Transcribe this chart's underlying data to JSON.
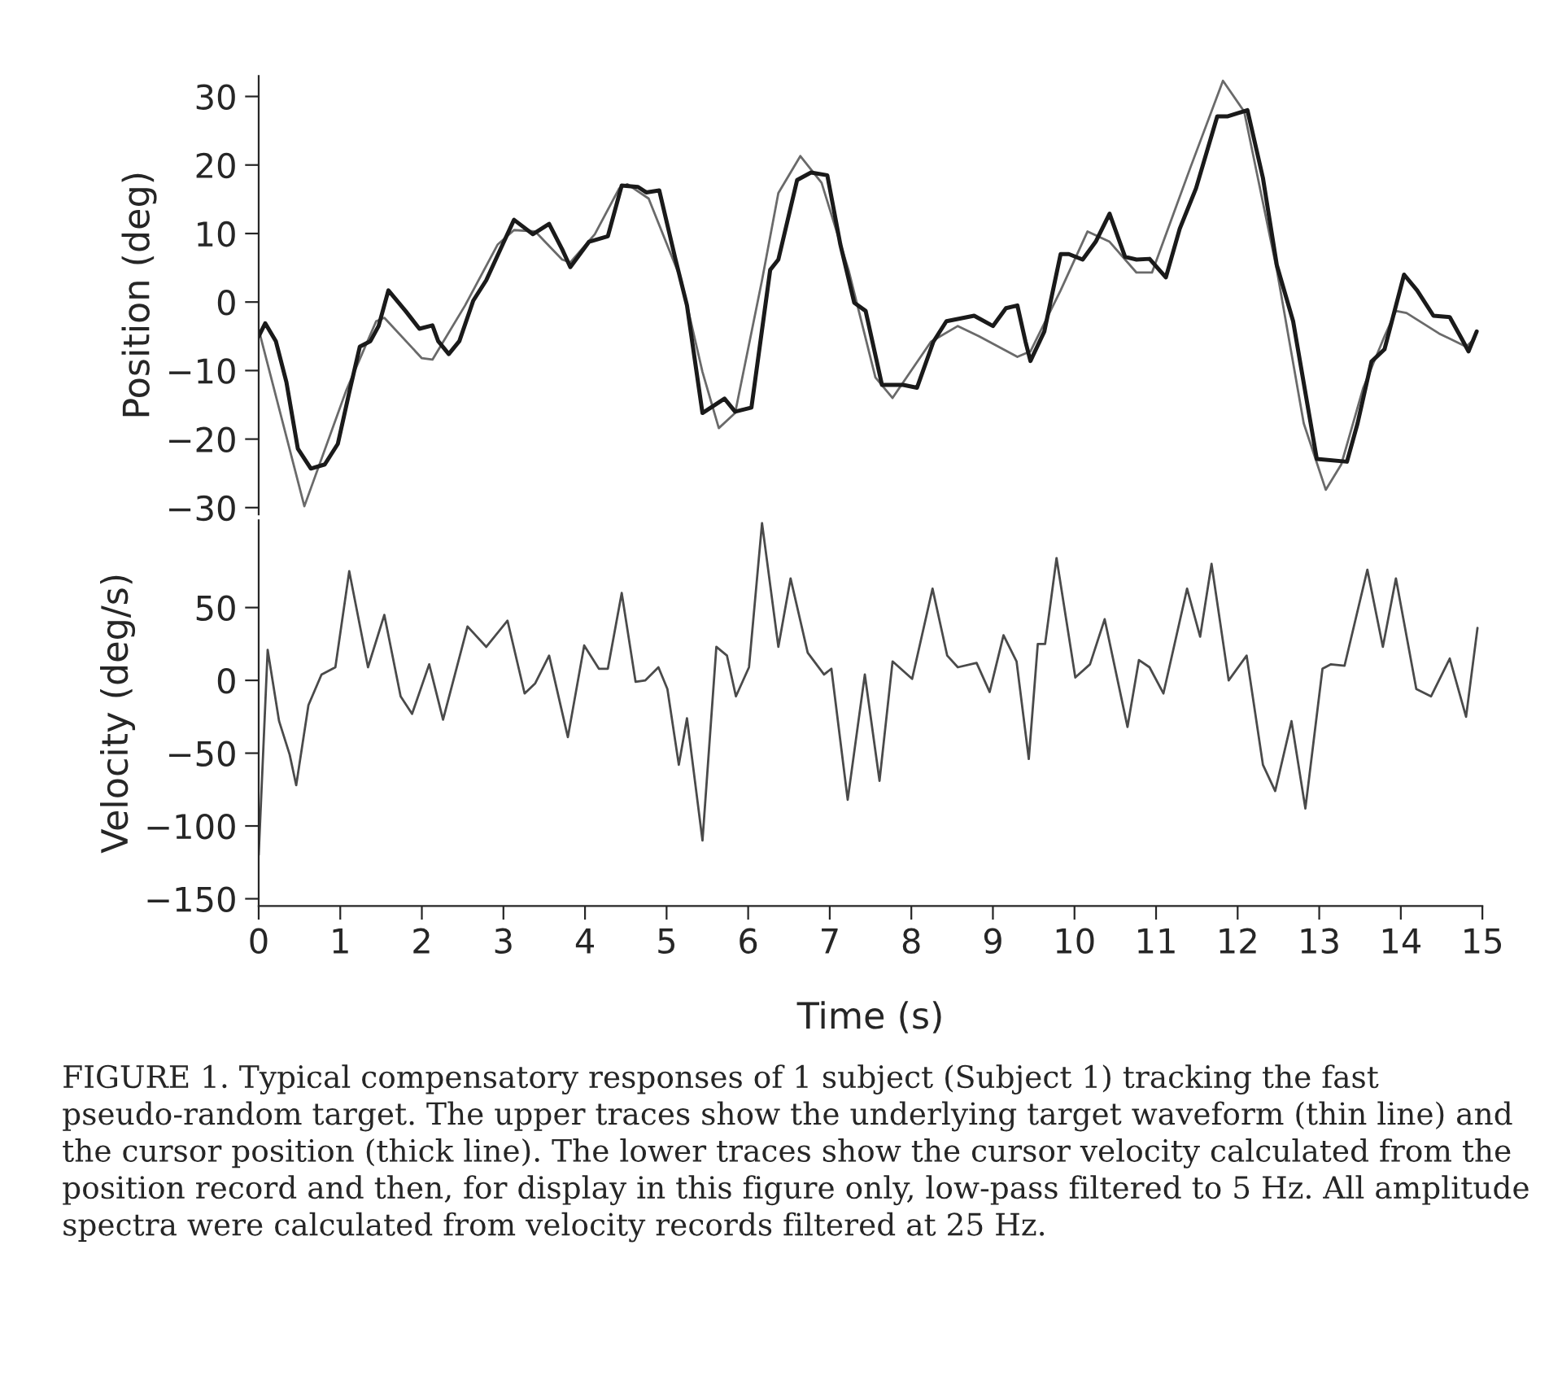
{
  "chart_data": [
    {
      "type": "line",
      "ylabel": "Position (deg)",
      "xlim": [
        0,
        15
      ],
      "ylim": [
        -31,
        33
      ],
      "yticks": [
        {
          "value": -30,
          "label": "−30"
        },
        {
          "value": -20,
          "label": "−20"
        },
        {
          "value": -10,
          "label": "−10"
        },
        0,
        10,
        20,
        30
      ],
      "tick_labels": "y",
      "grid": false,
      "legend": false,
      "series": [
        {
          "color": "#6a6a6a",
          "x": [
            0,
            0.56,
            1.07,
            1.44,
            1.54,
            2.0,
            2.13,
            2.53,
            2.93,
            3.13,
            3.39,
            3.72,
            3.82,
            4.12,
            4.42,
            4.52,
            4.78,
            5.18,
            5.44,
            5.64,
            5.84,
            6.17,
            6.37,
            6.64,
            6.9,
            7.23,
            7.56,
            7.77,
            8.24,
            8.57,
            8.83,
            9.3,
            9.46,
            9.83,
            10.16,
            10.43,
            10.76,
            10.95,
            11.42,
            11.82,
            12.08,
            12.48,
            12.81,
            13.08,
            13.27,
            13.54,
            13.8,
            13.94,
            14.07,
            14.47,
            14.8,
            14.9
          ],
          "values": [
            -4,
            -29.8,
            -13,
            -2.8,
            -2.3,
            -8.2,
            -8.4,
            -0.5,
            8.4,
            10.5,
            10.3,
            6.2,
            5.8,
            9.9,
            16.6,
            17.2,
            15.1,
            3.2,
            -10.2,
            -18.4,
            -16.2,
            3.2,
            15.9,
            21.3,
            17.4,
            4.7,
            -11,
            -14,
            -5.8,
            -3.5,
            -5,
            -8,
            -7.2,
            1.7,
            10.3,
            8.8,
            4.3,
            4.3,
            19.6,
            32.3,
            27.8,
            4.7,
            -17.7,
            -27.4,
            -23.7,
            -12.5,
            -5,
            -1.3,
            -1.6,
            -4.6,
            -6.5,
            -5.4
          ]
        },
        {
          "color": "#1a1a1a",
          "x": [
            0,
            0.08,
            0.21,
            0.34,
            0.48,
            0.64,
            0.81,
            0.97,
            1.11,
            1.24,
            1.37,
            1.47,
            1.59,
            1.8,
            1.97,
            2.13,
            2.2,
            2.33,
            2.46,
            2.63,
            2.79,
            2.99,
            3.13,
            3.36,
            3.56,
            3.72,
            3.82,
            4.05,
            4.28,
            4.45,
            4.65,
            4.75,
            4.91,
            5.11,
            5.25,
            5.44,
            5.71,
            5.84,
            6.04,
            6.27,
            6.37,
            6.6,
            6.77,
            6.97,
            7.13,
            7.3,
            7.44,
            7.64,
            7.9,
            8.07,
            8.27,
            8.43,
            8.77,
            9.0,
            9.16,
            9.3,
            9.4,
            9.46,
            9.63,
            9.83,
            9.93,
            10.1,
            10.26,
            10.43,
            10.62,
            10.76,
            10.92,
            11.12,
            11.29,
            11.49,
            11.75,
            11.88,
            12.12,
            12.31,
            12.48,
            12.68,
            12.97,
            13.34,
            13.47,
            13.64,
            13.8,
            14.04,
            14.2,
            14.4,
            14.6,
            14.73,
            14.83,
            14.93
          ],
          "values": [
            -5,
            -3.1,
            -5.7,
            -11.7,
            -21.4,
            -24.3,
            -23.7,
            -20.7,
            -13.2,
            -6.5,
            -5.7,
            -3.5,
            1.7,
            -1.3,
            -3.9,
            -3.4,
            -5.7,
            -7.6,
            -5.7,
            0.2,
            3.2,
            8.4,
            12,
            9.9,
            11.4,
            7.7,
            5.1,
            8.8,
            9.6,
            17,
            16.8,
            16,
            16.3,
            6.2,
            -0.5,
            -16.2,
            -14.1,
            -16,
            -15.4,
            4.7,
            6.2,
            17.8,
            18.9,
            18.5,
            8.4,
            -0.1,
            -1.3,
            -12.1,
            -12.1,
            -12.5,
            -5.8,
            -2.8,
            -2,
            -3.5,
            -0.9,
            -0.5,
            -5.8,
            -8.6,
            -4.3,
            7,
            7,
            6.2,
            8.8,
            12.9,
            6.6,
            6.2,
            6.3,
            3.6,
            10.7,
            16.6,
            27.1,
            27.1,
            28,
            18.1,
            5.4,
            -2.8,
            -22.9,
            -23.3,
            -17.7,
            -8.7,
            -6.9,
            4,
            1.7,
            -2,
            -2.2,
            -5,
            -7.2,
            -4.3
          ]
        }
      ]
    },
    {
      "type": "line",
      "ylabel": "Velocity (deg/s)",
      "xlabel": "Time (s)",
      "xlim": [
        0,
        15
      ],
      "ylim": [
        -155,
        110
      ],
      "xticks": [
        0,
        1,
        2,
        3,
        4,
        5,
        6,
        7,
        8,
        9,
        10,
        11,
        12,
        13,
        14,
        15
      ],
      "yticks": [
        {
          "value": -150,
          "label": "−150"
        },
        {
          "value": -100,
          "label": "−100"
        },
        {
          "value": -50,
          "label": "−50"
        },
        0,
        50
      ],
      "grid": false,
      "legend": false,
      "annotations": [
        "FIGURE 1. Typical compensatory responses of 1 subject (Subject 1) tracking the fast pseudo-random target. The upper traces show the underlying target waveform (thin line) and the cursor position (thick line). The lower traces show the cursor velocity calculated from the position record and then, for display in this figure only, low-pass filtered to 5 Hz. All amplitude spectra were calculated from velocity records filtered at 25 Hz."
      ],
      "series": [
        {
          "color": "#4a4a4a",
          "x": [
            0,
            0.11,
            0.25,
            0.38,
            0.46,
            0.61,
            0.77,
            0.94,
            1.11,
            1.34,
            1.54,
            1.74,
            1.88,
            2.09,
            2.26,
            2.56,
            2.79,
            3.05,
            3.26,
            3.39,
            3.56,
            3.79,
            3.99,
            4.17,
            4.28,
            4.45,
            4.62,
            4.74,
            4.9,
            5.01,
            5.15,
            5.25,
            5.44,
            5.61,
            5.74,
            5.85,
            6.01,
            6.17,
            6.37,
            6.52,
            6.73,
            6.93,
            7.02,
            7.22,
            7.43,
            7.61,
            7.77,
            8.01,
            8.26,
            8.44,
            8.57,
            8.8,
            8.96,
            9.13,
            9.29,
            9.44,
            9.55,
            9.64,
            9.78,
            10.01,
            10.19,
            10.37,
            10.65,
            10.79,
            10.92,
            11.09,
            11.38,
            11.54,
            11.68,
            11.89,
            12.11,
            12.31,
            12.46,
            12.66,
            12.83,
            13.04,
            13.14,
            13.31,
            13.59,
            13.78,
            13.94,
            14.19,
            14.37,
            14.6,
            14.8,
            14.94
          ],
          "values": [
            -120,
            21,
            -28,
            -51,
            -72,
            -17,
            4,
            9,
            75,
            9,
            45,
            -11,
            -23,
            11,
            -27,
            37,
            23,
            41,
            -9,
            -2,
            17,
            -39,
            24,
            8,
            8,
            60,
            -1,
            0,
            9,
            -6,
            -58,
            -26,
            -110,
            23,
            17,
            -11,
            9,
            108,
            23,
            70,
            19,
            4,
            8,
            -82,
            4,
            -69,
            13,
            1,
            63,
            17,
            9,
            12,
            -8,
            31,
            13,
            -54,
            25,
            25,
            84,
            2,
            11,
            42,
            -32,
            14,
            9,
            -9,
            63,
            30,
            80,
            0,
            17,
            -58,
            -76,
            -28,
            -88,
            8,
            11,
            10,
            76,
            23,
            70,
            -6,
            -11,
            15,
            -25,
            36
          ]
        }
      ]
    }
  ]
}
